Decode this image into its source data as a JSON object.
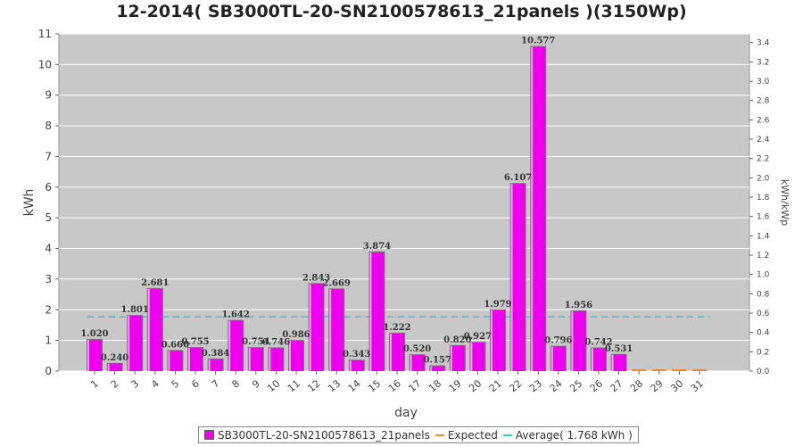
{
  "chart_data": {
    "type": "bar",
    "title": "12-2014( SB3000TL-20-SN2100578613_21panels )(3150Wp)",
    "xlabel": "day",
    "ylabel": "kWh",
    "y2label": "kWh/kWp",
    "ylim": [
      0,
      11
    ],
    "y2lim": [
      0,
      3.49
    ],
    "yticks": [
      "0",
      "1",
      "2",
      "3",
      "4",
      "5",
      "6",
      "7",
      "8",
      "9",
      "10",
      "11"
    ],
    "y2ticks": [
      "0.0",
      "0.2",
      "0.4",
      "0.6",
      "0.8",
      "1.0",
      "1.2",
      "1.4",
      "1.6",
      "1.8",
      "2.0",
      "2.2",
      "2.4",
      "2.6",
      "2.8",
      "3.0",
      "3.2",
      "3.4"
    ],
    "categories": [
      "1",
      "2",
      "3",
      "4",
      "5",
      "6",
      "7",
      "8",
      "9",
      "10",
      "11",
      "12",
      "13",
      "14",
      "15",
      "16",
      "17",
      "18",
      "19",
      "20",
      "21",
      "22",
      "23",
      "24",
      "25",
      "26",
      "27",
      "28",
      "29",
      "30",
      "31"
    ],
    "series": [
      {
        "name": "SB3000TL-20-SN2100578613_21panels",
        "color": "#ee00ee",
        "values": [
          1.02,
          0.24,
          1.801,
          2.681,
          0.66,
          0.755,
          0.384,
          1.642,
          0.754,
          0.746,
          0.986,
          2.843,
          2.669,
          0.343,
          3.874,
          1.222,
          0.52,
          0.157,
          0.82,
          0.927,
          1.979,
          6.107,
          10.577,
          0.796,
          1.956,
          0.742,
          0.531,
          0,
          0,
          0,
          0
        ],
        "labels": [
          "1.020",
          "0.240",
          "1.801",
          "2.681",
          "0.660",
          "0.755",
          "0.384",
          "1.642",
          "0.754",
          "0.746",
          "0.986",
          "2.843",
          "2.669",
          "0.343",
          "3.874",
          "1.222",
          "0.520",
          "0.157",
          "0.820",
          "0.927",
          "1.979",
          "6.107",
          "10.577",
          "0.796",
          "1.956",
          "0.742",
          "0.531",
          "",
          "",
          "",
          ""
        ]
      },
      {
        "name": "Expected",
        "color": "#f08a30",
        "values": [
          0,
          0,
          0,
          0,
          0,
          0,
          0,
          0,
          0,
          0,
          0,
          0,
          0,
          0,
          0,
          0,
          0,
          0,
          0,
          0,
          0,
          0,
          0,
          0,
          0,
          0,
          0,
          0,
          0,
          0,
          0
        ]
      },
      {
        "name": "Average( 1.768 kWh )",
        "color": "#33cccc",
        "value": 1.768
      }
    ],
    "grid": true,
    "legend": "bottom",
    "plot_background": "#c8c8c8"
  }
}
